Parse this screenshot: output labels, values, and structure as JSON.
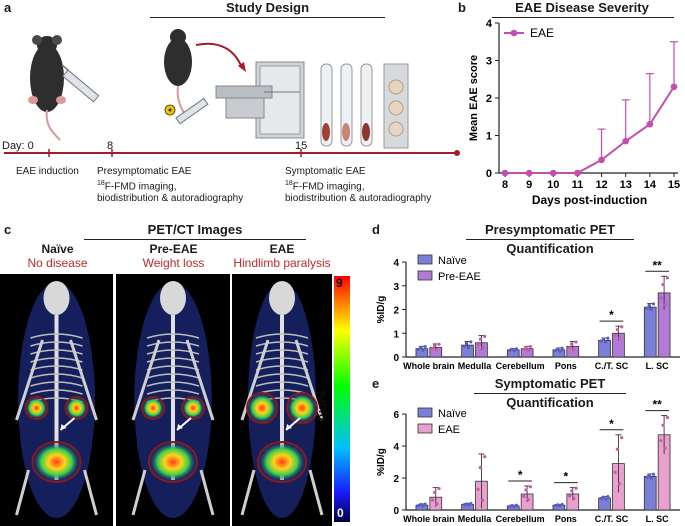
{
  "panel_a": {
    "letter": "a",
    "title": "Study Design",
    "timeline": {
      "day_prefix": "Day: 0",
      "day8": "8",
      "day15": "15",
      "ev0": "EAE induction",
      "ev8_title": "Presymptomatic EAE",
      "ev8_sup": "18",
      "ev8_line2": "F-FMD imaging,",
      "ev8_line3": "biodistribution & autoradiography",
      "ev15_title": "Symptomatic EAE",
      "ev15_sup": "18",
      "ev15_line2": "F-FMD imaging,",
      "ev15_line3": "biodistribution & autoradiography"
    }
  },
  "panel_b": {
    "letter": "b",
    "title": "EAE Disease Severity",
    "legend": "EAE",
    "ylabel": "Mean EAE score",
    "xlabel": "Days post-induction",
    "color": "#c24fb0"
  },
  "panel_c": {
    "letter": "c",
    "title": "PET/CT Images",
    "groups": [
      {
        "name": "Naïve",
        "status": "No disease"
      },
      {
        "name": "Pre-EAE",
        "status": "Weight loss"
      },
      {
        "name": "EAE",
        "status": "Hindlimb paralysis"
      }
    ],
    "scale_max": "9",
    "scale_min": "0",
    "scale_label": "%ID/g"
  },
  "panel_d": {
    "letter": "d",
    "title1": "Presymptomatic PET",
    "title2": "Quantification",
    "legend": [
      "Naïve",
      "Pre-EAE"
    ],
    "ylabel": "%ID/g"
  },
  "panel_e": {
    "letter": "e",
    "title1": "Symptomatic PET",
    "title2": "Quantification",
    "legend": [
      "Naïve",
      "EAE"
    ],
    "ylabel": "%ID/g"
  },
  "colors": {
    "timeline": "#a51c24",
    "naive": "#7b7fd8",
    "pre_eae": "#b27ad8",
    "eae": "#e8a1cf"
  },
  "chart_data": [
    {
      "id": "b",
      "type": "line",
      "title": "EAE Disease Severity",
      "xlabel": "Days post-induction",
      "ylabel": "Mean EAE score",
      "x": [
        8,
        9,
        10,
        11,
        12,
        13,
        14,
        15
      ],
      "series": [
        {
          "name": "EAE",
          "values": [
            0,
            0,
            0,
            0,
            0.35,
            0.85,
            1.3,
            2.3
          ],
          "error": [
            0,
            0,
            0,
            0,
            0.82,
            1.1,
            1.35,
            1.2
          ]
        }
      ],
      "xlim": [
        8,
        15
      ],
      "ylim": [
        0,
        4
      ],
      "yticks": [
        0,
        1,
        2,
        3,
        4
      ],
      "xticks": [
        8,
        9,
        10,
        11,
        12,
        13,
        14,
        15
      ]
    },
    {
      "id": "d",
      "type": "bar",
      "title": "Presymptomatic PET Quantification",
      "ylabel": "%ID/g",
      "categories": [
        "Whole brain",
        "Medulla",
        "Cerebellum",
        "Pons",
        "C./T. SC",
        "L. SC"
      ],
      "series": [
        {
          "name": "Naïve",
          "values": [
            0.35,
            0.5,
            0.3,
            0.3,
            0.7,
            2.1
          ],
          "error": [
            0.1,
            0.15,
            0.05,
            0.08,
            0.1,
            0.15
          ]
        },
        {
          "name": "Pre-EAE",
          "values": [
            0.4,
            0.6,
            0.35,
            0.45,
            1.0,
            2.7
          ],
          "error": [
            0.15,
            0.3,
            0.1,
            0.2,
            0.3,
            0.7
          ]
        }
      ],
      "ylim": [
        0,
        4
      ],
      "yticks": [
        0,
        1,
        2,
        3,
        4
      ],
      "significance": [
        {
          "category": "C./T. SC",
          "label": "*"
        },
        {
          "category": "L. SC",
          "label": "**"
        }
      ]
    },
    {
      "id": "e",
      "type": "bar",
      "title": "Symptomatic PET Quantification",
      "ylabel": "%ID/g",
      "categories": [
        "Whole brain",
        "Medulla",
        "Cerebellum",
        "Pons",
        "C./T. SC",
        "L. SC"
      ],
      "series": [
        {
          "name": "Naïve",
          "values": [
            0.3,
            0.35,
            0.25,
            0.3,
            0.75,
            2.1
          ],
          "error": [
            0.08,
            0.06,
            0.05,
            0.05,
            0.1,
            0.15
          ]
        },
        {
          "name": "EAE",
          "values": [
            0.8,
            1.8,
            1.0,
            1.0,
            2.9,
            4.7
          ],
          "error": [
            0.6,
            1.7,
            0.5,
            0.4,
            1.8,
            1.2
          ]
        }
      ],
      "ylim": [
        0,
        6
      ],
      "yticks": [
        0,
        2,
        4,
        6
      ],
      "significance": [
        {
          "category": "Cerebellum",
          "label": "*"
        },
        {
          "category": "Pons",
          "label": "*"
        },
        {
          "category": "C./T. SC",
          "label": "*"
        },
        {
          "category": "L. SC",
          "label": "**"
        }
      ]
    }
  ]
}
